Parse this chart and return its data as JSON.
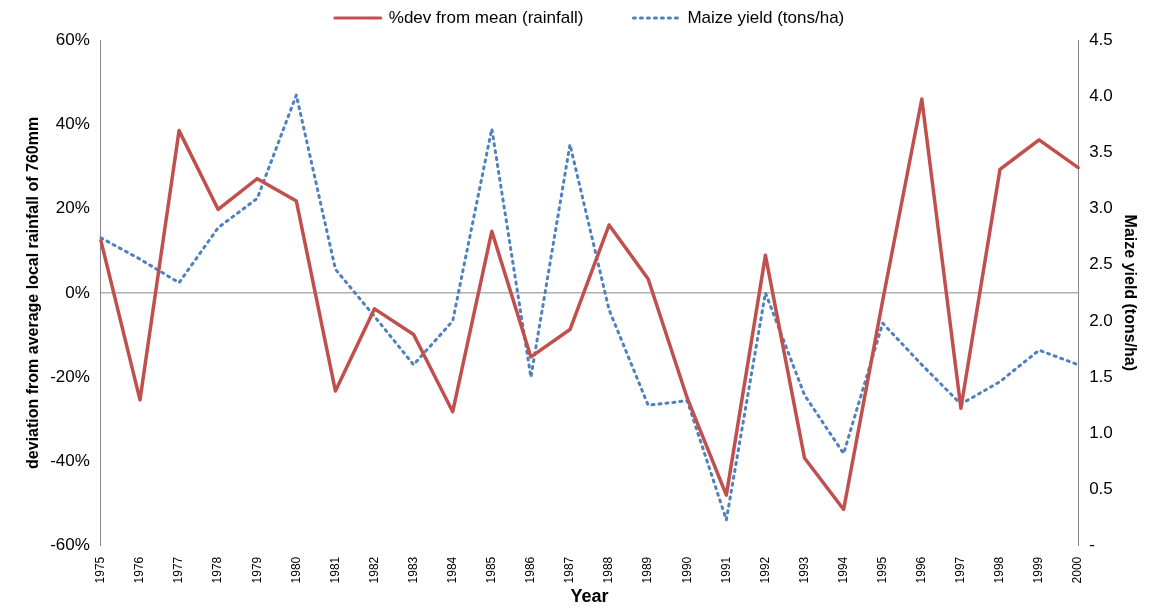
{
  "chart_data": {
    "type": "line",
    "xlabel": "Year",
    "ylabel": "deviation from average local rainfall of 760mm",
    "y2label": "Maize yield (tons/ha)",
    "categories": [
      "1975",
      "1976",
      "1977",
      "1978",
      "1979",
      "1980",
      "1981",
      "1982",
      "1983",
      "1984",
      "1985",
      "1986",
      "1987",
      "1988",
      "1989",
      "1990",
      "1991",
      "1992",
      "1993",
      "1994",
      "1995",
      "1996",
      "1997",
      "1998",
      "1999",
      "2000"
    ],
    "series": [
      {
        "name": "%dev from mean (rainfall)",
        "color": "#c0504d",
        "line_style": "solid",
        "values": [
          12.4,
          -25.4,
          38.5,
          19.8,
          27.1,
          21.8,
          -23.3,
          -3.8,
          -9.9,
          -28.2,
          14.6,
          -15.2,
          -8.7,
          16.1,
          3.3,
          -25,
          -48,
          8.9,
          -39.2,
          -51.4,
          -1.8,
          46,
          -27.4,
          29.3,
          36.3,
          29.7
        ]
      },
      {
        "name": "Maize yield (tons/ha)",
        "color": "#4f81bd",
        "line_style": "dotted",
        "axis": "y2",
        "values": [
          2.74,
          2.55,
          2.34,
          2.83,
          3.09,
          4.01,
          2.46,
          2.04,
          1.61,
          2.0,
          3.71,
          1.5,
          3.57,
          2.1,
          1.25,
          1.29,
          0.23,
          2.25,
          1.34,
          0.82,
          1.98,
          1.61,
          1.26,
          1.46,
          1.74,
          1.61
        ]
      }
    ],
    "ylim": [
      -60,
      60
    ],
    "yticks": [
      {
        "value": -60,
        "label": "-60%"
      },
      {
        "value": -40,
        "label": "-40%"
      },
      {
        "value": -20,
        "label": "-20%"
      },
      {
        "value": 0,
        "label": "0%"
      },
      {
        "value": 20,
        "label": "20%"
      },
      {
        "value": 40,
        "label": "40%"
      },
      {
        "value": 60,
        "label": "60%"
      }
    ],
    "y2lim": [
      0,
      4.5
    ],
    "y2ticks": [
      {
        "value": 0,
        "label": "-"
      },
      {
        "value": 0.5,
        "label": "0.5"
      },
      {
        "value": 1,
        "label": "1.0"
      },
      {
        "value": 1.5,
        "label": "1.5"
      },
      {
        "value": 2,
        "label": "2.0"
      },
      {
        "value": 2.5,
        "label": "2.5"
      },
      {
        "value": 3,
        "label": "3.0"
      },
      {
        "value": 3.5,
        "label": "3.5"
      },
      {
        "value": 4,
        "label": "4.0"
      },
      {
        "value": 4.5,
        "label": "4.5"
      }
    ],
    "ref_lines": [
      {
        "axis": "y",
        "value": 0,
        "color": "#888888"
      }
    ],
    "grid": false,
    "legend": "top",
    "marker": "none"
  }
}
